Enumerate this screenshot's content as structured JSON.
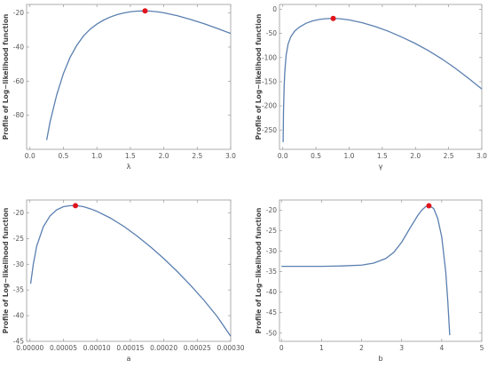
{
  "chart_data": [
    {
      "type": "line",
      "xlabel": "λ",
      "ylabel": "Profile of Log−likelihood function",
      "xlim": [
        -0.05,
        3.0
      ],
      "ylim": [
        -100,
        -15
      ],
      "xticks": [
        0.0,
        0.5,
        1.0,
        1.5,
        2.0,
        2.5,
        3.0
      ],
      "xtick_labels": [
        "0.0",
        "0.5",
        "1.0",
        "1.5",
        "2.0",
        "2.5",
        "3.0"
      ],
      "yticks": [
        -80,
        -60,
        -40,
        -20
      ],
      "ytick_labels": [
        "-80",
        "-60",
        "-40",
        "-20"
      ],
      "x": [
        0.25,
        0.3,
        0.4,
        0.5,
        0.6,
        0.7,
        0.8,
        0.9,
        1.0,
        1.1,
        1.2,
        1.3,
        1.4,
        1.5,
        1.6,
        1.7,
        1.8,
        1.9,
        2.0,
        2.2,
        2.4,
        2.6,
        2.8,
        3.0
      ],
      "y": [
        -94.5,
        -84,
        -68,
        -55.5,
        -46,
        -39,
        -33.5,
        -29.5,
        -26.5,
        -24.2,
        -22.4,
        -21,
        -20,
        -19.3,
        -18.9,
        -18.8,
        -18.9,
        -19.3,
        -19.9,
        -21.6,
        -23.8,
        -26.3,
        -29.1,
        -32
      ],
      "max_point": {
        "x": 1.72,
        "y": -18.8
      },
      "grid": false
    },
    {
      "type": "line",
      "xlabel": "γ",
      "ylabel": "Profile of Log−likelihood function",
      "xlim": [
        -0.05,
        3.0
      ],
      "ylim": [
        -290,
        10
      ],
      "xticks": [
        0.0,
        0.5,
        1.0,
        1.5,
        2.0,
        2.5,
        3.0
      ],
      "xtick_labels": [
        "0.0",
        "0.5",
        "1.0",
        "1.5",
        "2.0",
        "2.5",
        "3.0"
      ],
      "yticks": [
        0,
        -50,
        -100,
        -150,
        -200,
        -250
      ],
      "ytick_labels": [
        "0",
        "-50",
        "-100",
        "-150",
        "-200",
        "-250"
      ],
      "x": [
        0.005,
        0.01,
        0.02,
        0.03,
        0.05,
        0.08,
        0.12,
        0.18,
        0.25,
        0.35,
        0.45,
        0.55,
        0.65,
        0.75,
        0.85,
        1.0,
        1.2,
        1.4,
        1.6,
        1.8,
        2.0,
        2.2,
        2.4,
        2.6,
        2.8,
        3.0
      ],
      "y": [
        -275,
        -215,
        -160,
        -130,
        -95,
        -72,
        -57,
        -45,
        -37,
        -29,
        -24,
        -21,
        -19.5,
        -19,
        -19.5,
        -22,
        -28,
        -36,
        -46,
        -58,
        -71,
        -86,
        -103,
        -122,
        -143,
        -165
      ],
      "max_point": {
        "x": 0.76,
        "y": -19
      },
      "grid": false
    },
    {
      "type": "line",
      "xlabel": "a",
      "ylabel": "Profile of Log−likelihood function",
      "xlim": [
        -5e-06,
        0.0003
      ],
      "ylim": [
        -45,
        -17.5
      ],
      "xticks": [
        0,
        5e-05,
        0.0001,
        0.00015,
        0.0002,
        0.00025,
        0.0003
      ],
      "xtick_labels": [
        "0.00000",
        "0.00005",
        "0.00010",
        "0.00015",
        "0.00020",
        "0.00025",
        "0.00030"
      ],
      "yticks": [
        -45,
        -40,
        -35,
        -30,
        -25,
        -20
      ],
      "ytick_labels": [
        "-45",
        "-40",
        "-35",
        "-30",
        "-25",
        "-20"
      ],
      "x": [
        1e-06,
        5e-06,
        1e-05,
        2e-05,
        3e-05,
        4e-05,
        5e-05,
        6e-05,
        7e-05,
        8e-05,
        9e-05,
        0.0001,
        0.00012,
        0.00014,
        0.00016,
        0.00018,
        0.0002,
        0.00022,
        0.00024,
        0.00026,
        0.00028,
        0.0003
      ],
      "y": [
        -33.8,
        -30,
        -26.5,
        -22.7,
        -20.6,
        -19.4,
        -18.8,
        -18.6,
        -18.6,
        -18.8,
        -19.2,
        -19.7,
        -21,
        -22.6,
        -24.5,
        -26.6,
        -28.9,
        -31.4,
        -34.1,
        -37,
        -40.2,
        -44
      ],
      "max_point": {
        "x": 6.8e-05,
        "y": -18.6
      },
      "grid": false
    },
    {
      "type": "line",
      "xlabel": "b",
      "ylabel": "Profile of Log−likelihood function",
      "xlim": [
        -0.05,
        5.0
      ],
      "ylim": [
        -52,
        -17.5
      ],
      "xticks": [
        0,
        1,
        2,
        3,
        4,
        5
      ],
      "xtick_labels": [
        "0",
        "1",
        "2",
        "3",
        "4",
        "5"
      ],
      "yticks": [
        -50,
        -45,
        -40,
        -35,
        -30,
        -25,
        -20
      ],
      "ytick_labels": [
        "-50",
        "-45",
        "-40",
        "-35",
        "-30",
        "-25",
        "-20"
      ],
      "x": [
        0,
        0.5,
        1.0,
        1.5,
        2.0,
        2.3,
        2.6,
        2.8,
        3.0,
        3.2,
        3.4,
        3.5,
        3.6,
        3.7,
        3.8,
        3.9,
        4.0,
        4.1,
        4.15,
        4.2
      ],
      "y": [
        -33.7,
        -33.7,
        -33.7,
        -33.6,
        -33.4,
        -32.9,
        -31.8,
        -30.3,
        -27.8,
        -24.5,
        -21.3,
        -20,
        -19.1,
        -18.9,
        -19.6,
        -22,
        -26.5,
        -35,
        -42,
        -50.5
      ],
      "max_point": {
        "x": 3.68,
        "y": -18.9
      },
      "grid": false
    }
  ],
  "colors": {
    "curve": "#5a7fb0",
    "max_marker": "#e0141c",
    "frame": "#9a9a9a",
    "text": "#555555"
  }
}
